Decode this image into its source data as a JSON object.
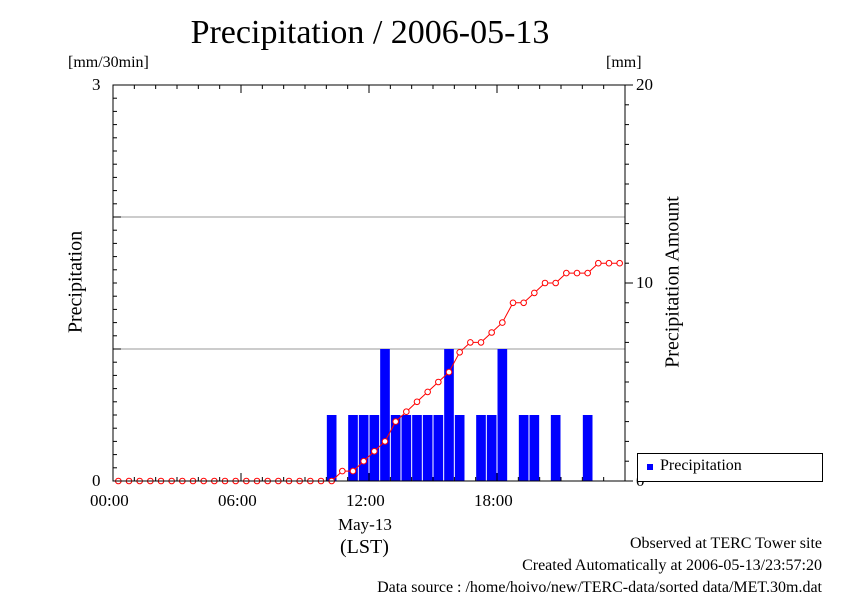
{
  "title": "Precipitation / 2006-05-13",
  "left_axis": {
    "unit": "[mm/30min]",
    "label": "Precipitation",
    "ticks": [
      "0",
      "3"
    ]
  },
  "right_axis": {
    "unit": "[mm]",
    "label": "Precipitation Amount",
    "ticks": [
      "0",
      "10",
      "20"
    ]
  },
  "x_axis": {
    "ticks": [
      "00:00",
      "06:00",
      "12:00",
      "18:00"
    ],
    "date_label": "May-13",
    "zone_label": "(LST)"
  },
  "legend": {
    "label": "Precipitation"
  },
  "footer": {
    "line1": "Observed at TERC Tower site",
    "line2": "Created Automatically at 2006-05-13/23:57:20",
    "line3": "Data source : /home/hoivo/new/TERC-data/sorted  data/MET.30m.dat"
  },
  "colors": {
    "bars": "#0000ff",
    "cumulative_line": "#ff0000",
    "gridline": "#999999"
  },
  "chart_data": {
    "type": "bar",
    "title": "Precipitation / 2006-05-13",
    "xlabel": "May-13 (LST)",
    "ylabel": "Precipitation",
    "y2label": "Precipitation Amount",
    "x_unit": "hours (LST)",
    "x_range": [
      0,
      24
    ],
    "ylim": [
      0,
      3
    ],
    "y2lim": [
      0,
      20
    ],
    "grid": "horizontal at 1 and 2 mm/30min",
    "legend_position": "bottom-right",
    "series": [
      {
        "name": "Precipitation",
        "kind": "bar",
        "axis": "left",
        "unit": "mm/30min",
        "x": [
          0.0,
          0.5,
          1.0,
          1.5,
          2.0,
          2.5,
          3.0,
          3.5,
          4.0,
          4.5,
          5.0,
          5.5,
          6.0,
          6.5,
          7.0,
          7.5,
          8.0,
          8.5,
          9.0,
          9.5,
          10.0,
          10.5,
          11.0,
          11.5,
          12.0,
          12.5,
          13.0,
          13.5,
          14.0,
          14.5,
          15.0,
          15.5,
          16.0,
          16.5,
          17.0,
          17.5,
          18.0,
          18.5,
          19.0,
          19.5,
          20.0,
          20.5,
          21.0,
          21.5,
          22.0,
          22.5,
          23.0,
          23.5
        ],
        "values": [
          0,
          0,
          0,
          0,
          0,
          0,
          0,
          0,
          0,
          0,
          0,
          0,
          0,
          0,
          0,
          0,
          0,
          0,
          0,
          0,
          0.5,
          0,
          0.5,
          0.5,
          0.5,
          1.0,
          0.5,
          0.5,
          0.5,
          0.5,
          0.5,
          1.0,
          0.5,
          0,
          0.5,
          0.5,
          1.0,
          0,
          0.5,
          0.5,
          0,
          0.5,
          0,
          0,
          0.5,
          0,
          0,
          0
        ]
      },
      {
        "name": "",
        "kind": "line",
        "axis": "right",
        "unit": "mm",
        "x": [
          0.0,
          0.5,
          1.0,
          1.5,
          2.0,
          2.5,
          3.0,
          3.5,
          4.0,
          4.5,
          5.0,
          5.5,
          6.0,
          6.5,
          7.0,
          7.5,
          8.0,
          8.5,
          9.0,
          9.5,
          10.0,
          10.5,
          11.0,
          11.5,
          12.0,
          12.5,
          13.0,
          13.5,
          14.0,
          14.5,
          15.0,
          15.5,
          16.0,
          16.5,
          17.0,
          17.5,
          18.0,
          18.5,
          19.0,
          19.5,
          20.0,
          20.5,
          21.0,
          21.5,
          22.0,
          22.5,
          23.0,
          23.5
        ],
        "values": [
          0,
          0,
          0,
          0,
          0,
          0,
          0,
          0,
          0,
          0,
          0,
          0,
          0,
          0,
          0,
          0,
          0,
          0,
          0,
          0,
          0,
          0.5,
          0.5,
          1.0,
          1.5,
          2.0,
          3.0,
          3.5,
          4.0,
          4.5,
          5.0,
          5.5,
          6.5,
          7.0,
          7.0,
          7.5,
          8.0,
          9.0,
          9.0,
          9.5,
          10.0,
          10.0,
          10.5,
          10.5,
          10.5,
          11.0,
          11.0,
          11.0
        ]
      }
    ]
  }
}
